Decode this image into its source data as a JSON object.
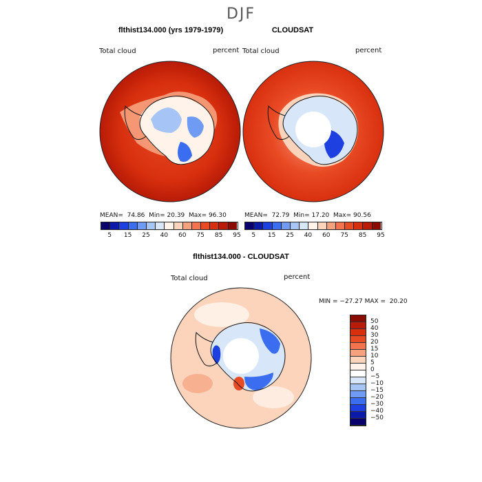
{
  "season": "DJF",
  "panels": [
    {
      "title": "flthist134.000 (yrs 1979-1979)",
      "variable": "Total cloud",
      "units": "percent",
      "stats": {
        "mean": "74.86",
        "min": "20.39",
        "max": "96.30"
      },
      "stats_labels": {
        "mean": "MEAN=",
        "min": "Min=",
        "max": "Max="
      }
    },
    {
      "title": "CLOUDSAT",
      "variable": "Total cloud",
      "units": "percent",
      "stats": {
        "mean": "72.79",
        "min": "17.20",
        "max": "90.56"
      },
      "stats_labels": {
        "mean": "MEAN=",
        "min": "Min=",
        "max": "Max="
      }
    }
  ],
  "abs_colorbar": {
    "colors": [
      "#08006b",
      "#0b1aa8",
      "#1e40e0",
      "#3b6df0",
      "#6f9bf5",
      "#a7c4f7",
      "#d8e6fa",
      "#fff3ea",
      "#fcd3bb",
      "#f7a27e",
      "#f2734c",
      "#e84a24",
      "#d8300f",
      "#b81b06",
      "#8a0c00"
    ],
    "tick_labels": [
      "5",
      "15",
      "25",
      "40",
      "60",
      "75",
      "85",
      "95"
    ]
  },
  "diff_panel": {
    "title": "flthist134.000 - CLOUDSAT",
    "variable": "Total cloud",
    "units": "percent",
    "stats_text": "MIN = −27.27 MAX =  20.20"
  },
  "diff_colorbar": {
    "colors": [
      "#8a0c00",
      "#b81b06",
      "#d8300f",
      "#e84a24",
      "#f2734c",
      "#f7a27e",
      "#fcd3bb",
      "#fff3ea",
      "#ffffff",
      "#d8e6fa",
      "#a7c4f7",
      "#6f9bf5",
      "#3b6df0",
      "#1e40e0",
      "#0b1aa8",
      "#08006b"
    ],
    "tick_labels": [
      "50",
      "40",
      "30",
      "20",
      "15",
      "10",
      "5",
      "0",
      "−5",
      "−10",
      "−15",
      "−20",
      "−30",
      "−40",
      "−50"
    ]
  }
}
